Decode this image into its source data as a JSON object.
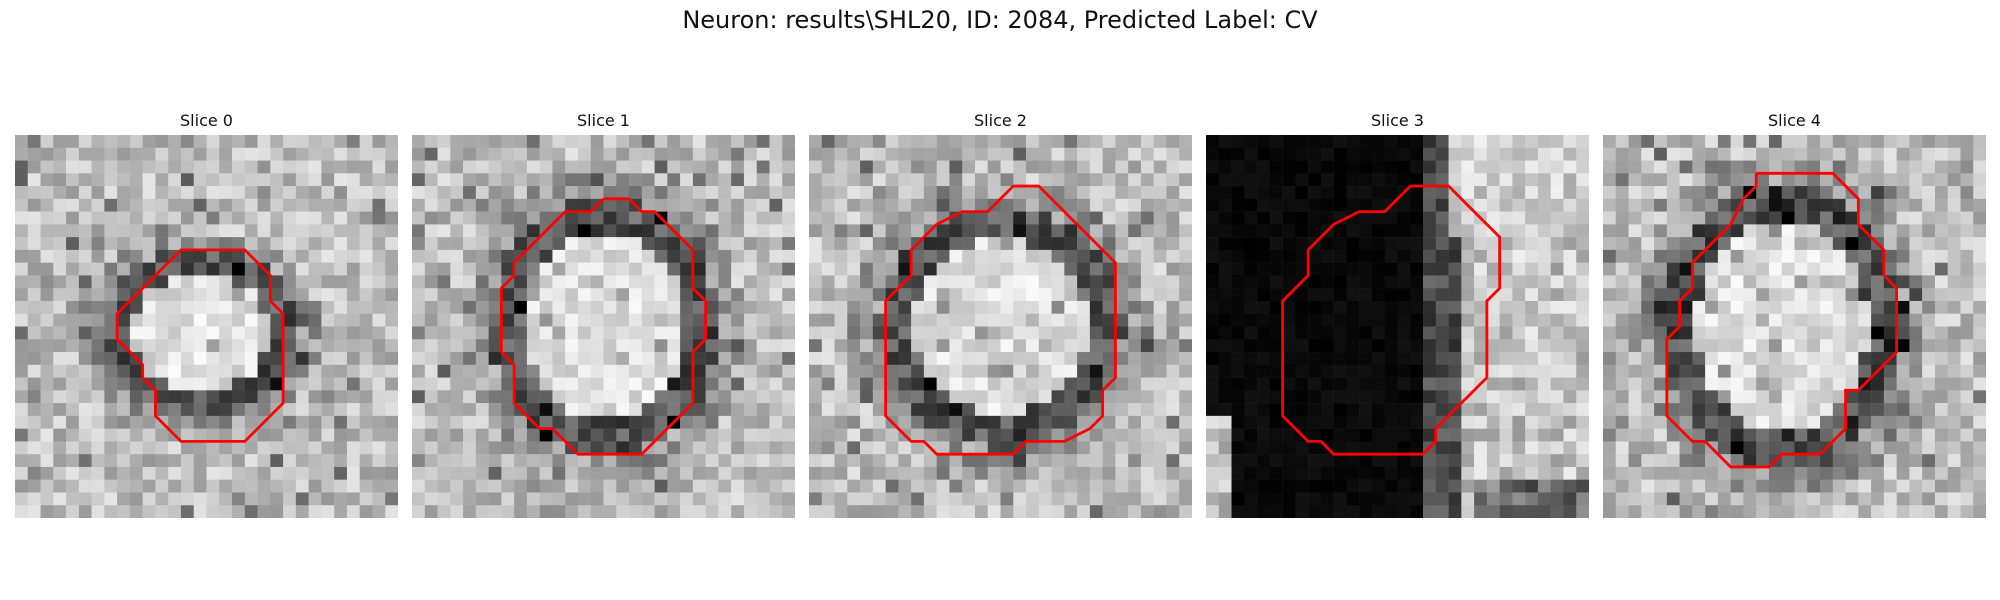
{
  "figure": {
    "title": "Neuron: results\\SHL20, ID: 2084, Predicted Label: CV",
    "outline_color": "#ff0000"
  },
  "slices": [
    {
      "label": "Slice 0",
      "outline": [
        [
          14,
          9
        ],
        [
          18,
          9
        ],
        [
          20,
          11
        ],
        [
          20,
          13
        ],
        [
          21,
          14
        ],
        [
          21,
          21
        ],
        [
          19,
          23
        ],
        [
          18,
          24
        ],
        [
          13,
          24
        ],
        [
          12,
          23
        ],
        [
          11,
          22
        ],
        [
          11,
          20
        ],
        [
          10,
          19
        ],
        [
          10,
          18
        ],
        [
          9,
          17
        ],
        [
          8,
          16
        ],
        [
          8,
          14
        ],
        [
          9,
          13
        ],
        [
          10,
          12
        ],
        [
          11,
          11
        ],
        [
          12,
          10
        ],
        [
          13,
          9
        ],
        [
          14,
          9
        ]
      ]
    },
    {
      "label": "Slice 1",
      "outline": [
        [
          15,
          5
        ],
        [
          17,
          5
        ],
        [
          18,
          6
        ],
        [
          19,
          6
        ],
        [
          21,
          8
        ],
        [
          22,
          9
        ],
        [
          22,
          12
        ],
        [
          23,
          13
        ],
        [
          23,
          16
        ],
        [
          22,
          17
        ],
        [
          22,
          21
        ],
        [
          21,
          22
        ],
        [
          20,
          23
        ],
        [
          19,
          24
        ],
        [
          18,
          25
        ],
        [
          13,
          25
        ],
        [
          12,
          24
        ],
        [
          11,
          23
        ],
        [
          10,
          23
        ],
        [
          9,
          22
        ],
        [
          8,
          21
        ],
        [
          8,
          18
        ],
        [
          7,
          17
        ],
        [
          7,
          12
        ],
        [
          8,
          11
        ],
        [
          8,
          10
        ],
        [
          9,
          9
        ],
        [
          10,
          8
        ],
        [
          11,
          7
        ],
        [
          12,
          6
        ],
        [
          14,
          6
        ],
        [
          15,
          5
        ]
      ]
    },
    {
      "label": "Slice 2",
      "outline": [
        [
          16,
          4
        ],
        [
          18,
          4
        ],
        [
          20,
          6
        ],
        [
          21,
          7
        ],
        [
          22,
          8
        ],
        [
          23,
          9
        ],
        [
          24,
          10
        ],
        [
          24,
          19
        ],
        [
          23,
          20
        ],
        [
          23,
          22
        ],
        [
          22,
          23
        ],
        [
          20,
          24
        ],
        [
          17,
          24
        ],
        [
          16,
          25
        ],
        [
          10,
          25
        ],
        [
          9,
          24
        ],
        [
          8,
          24
        ],
        [
          7,
          23
        ],
        [
          6,
          22
        ],
        [
          6,
          13
        ],
        [
          7,
          12
        ],
        [
          8,
          11
        ],
        [
          8,
          9
        ],
        [
          9,
          8
        ],
        [
          10,
          7
        ],
        [
          12,
          6
        ],
        [
          14,
          6
        ],
        [
          15,
          5
        ],
        [
          16,
          4
        ]
      ]
    },
    {
      "label": "Slice 3",
      "outline": [
        [
          16,
          4
        ],
        [
          19,
          4
        ],
        [
          20,
          5
        ],
        [
          21,
          6
        ],
        [
          22,
          7
        ],
        [
          23,
          8
        ],
        [
          23,
          12
        ],
        [
          22,
          13
        ],
        [
          22,
          19
        ],
        [
          21,
          20
        ],
        [
          20,
          21
        ],
        [
          19,
          22
        ],
        [
          18,
          23
        ],
        [
          18,
          24
        ],
        [
          17,
          25
        ],
        [
          10,
          25
        ],
        [
          9,
          24
        ],
        [
          8,
          24
        ],
        [
          7,
          23
        ],
        [
          6,
          22
        ],
        [
          6,
          13
        ],
        [
          7,
          12
        ],
        [
          8,
          11
        ],
        [
          8,
          9
        ],
        [
          9,
          8
        ],
        [
          10,
          7
        ],
        [
          12,
          6
        ],
        [
          14,
          6
        ],
        [
          15,
          5
        ],
        [
          16,
          4
        ]
      ]
    },
    {
      "label": "Slice 4",
      "outline": [
        [
          12,
          3
        ],
        [
          18,
          3
        ],
        [
          20,
          5
        ],
        [
          20,
          7
        ],
        [
          22,
          9
        ],
        [
          22,
          11
        ],
        [
          23,
          12
        ],
        [
          23,
          17
        ],
        [
          22,
          18
        ],
        [
          21,
          19
        ],
        [
          20,
          20
        ],
        [
          19,
          20
        ],
        [
          19,
          23
        ],
        [
          18,
          24
        ],
        [
          17,
          25
        ],
        [
          14,
          25
        ],
        [
          13,
          26
        ],
        [
          10,
          26
        ],
        [
          9,
          25
        ],
        [
          8,
          24
        ],
        [
          7,
          24
        ],
        [
          6,
          23
        ],
        [
          5,
          22
        ],
        [
          5,
          16
        ],
        [
          6,
          15
        ],
        [
          6,
          13
        ],
        [
          7,
          12
        ],
        [
          7,
          10
        ],
        [
          8,
          9
        ],
        [
          9,
          8
        ],
        [
          10,
          7
        ],
        [
          11,
          5
        ],
        [
          12,
          4
        ],
        [
          12,
          3
        ]
      ]
    }
  ]
}
